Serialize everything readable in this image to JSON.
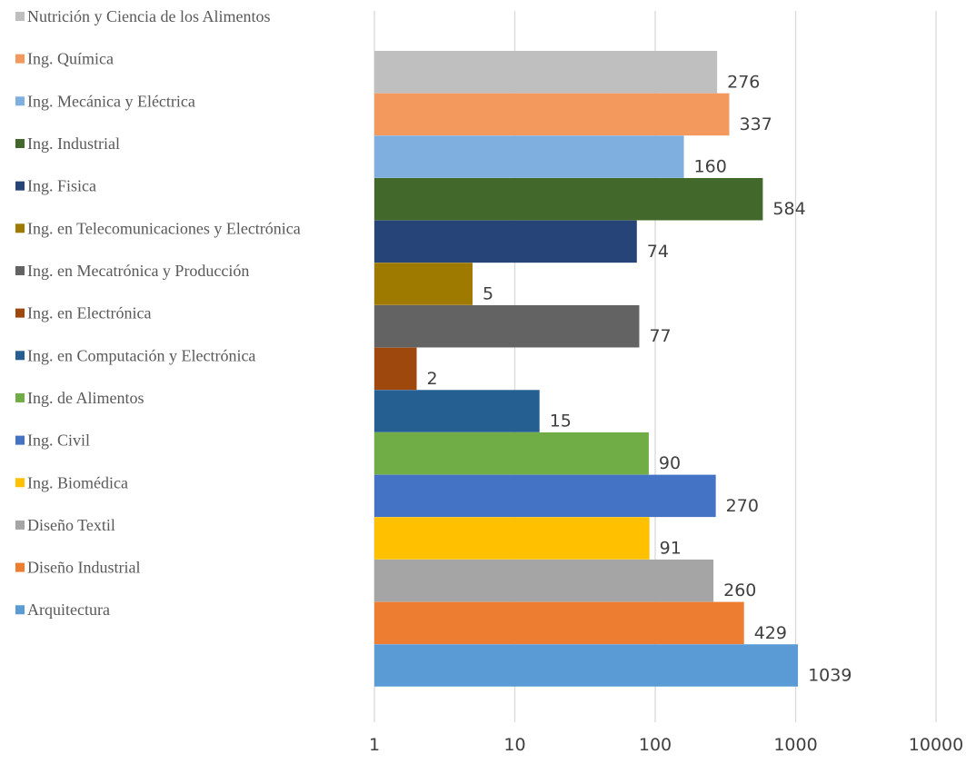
{
  "chart_data": {
    "type": "bar",
    "orientation": "horizontal",
    "x_scale": "log",
    "xlim": [
      1,
      10000
    ],
    "x_ticks": [
      "1",
      "10",
      "100",
      "1000",
      "10000"
    ],
    "grid": "vertical",
    "legend_position": "left",
    "categories": [
      "Nutrición y Ciencia de los Alimentos",
      "Ing. Química",
      "Ing. Mecánica y Eléctrica",
      "Ing. Industrial",
      "Ing. Fisica",
      "Ing. en Telecomunicaciones y Electrónica",
      "Ing. en Mecatrónica y Producción",
      "Ing. en Electrónica",
      "Ing. en Computación y Electrónica",
      "Ing. de Alimentos",
      "Ing. Civil",
      "Ing. Biomédica",
      "Diseño Textil",
      "Diseño Industrial",
      "Arquitectura"
    ],
    "values": [
      276,
      337,
      160,
      584,
      74,
      5,
      77,
      2,
      15,
      90,
      270,
      91,
      260,
      429,
      1039
    ],
    "data_labels": [
      "276",
      "337",
      "160",
      "584",
      "74",
      "5",
      "77",
      "2",
      "15",
      "90",
      "270",
      "91",
      "260",
      "429",
      "1039"
    ],
    "colors": [
      "#BFBFBF",
      "#F4995E",
      "#7FAFDF",
      "#43682B",
      "#264478",
      "#9E7A00",
      "#636363",
      "#9E480E",
      "#255E91",
      "#70AD47",
      "#4472C4",
      "#FFC000",
      "#A5A5A5",
      "#ED7D31",
      "#5B9BD5"
    ]
  }
}
